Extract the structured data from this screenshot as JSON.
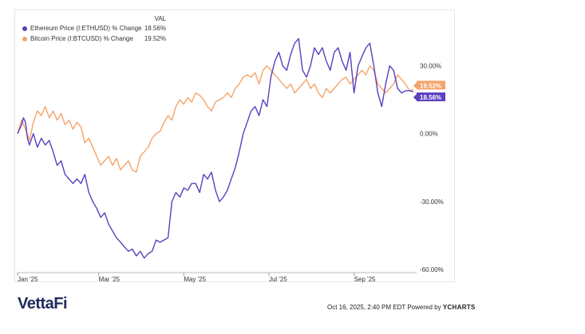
{
  "legend": {
    "header": "VAL",
    "items": [
      {
        "name": "Ethereum Price (I:ETHUSD) % Change",
        "value": "18.56%",
        "color": "#5b3fbf"
      },
      {
        "name": "Bitcoin Price (I:BTCUSD) % Change",
        "value": "19.52%",
        "color": "#f4a36a"
      }
    ]
  },
  "footer": {
    "logo": "VettaFi",
    "timestamp": "Oct 16, 2025, 2:40 PM EDT Powered by",
    "brand": "YCHARTS"
  },
  "chart_data": {
    "type": "line",
    "x_ticks": [
      "Jan '25",
      "Mar '25",
      "May '25",
      "Jul '25",
      "Sep '25"
    ],
    "y_ticks": [
      "30.00%",
      "0.00%",
      "-30.00%",
      "-60.00%"
    ],
    "ylim": [
      -60,
      45
    ],
    "end_labels": [
      "19.52%",
      "18.56%"
    ],
    "series": [
      {
        "name": "Ethereum Price (I:ETHUSD) % Change",
        "color": "#5b3fbf",
        "x": [
          0,
          0.01,
          0.015,
          0.02,
          0.025,
          0.03,
          0.04,
          0.05,
          0.06,
          0.07,
          0.08,
          0.09,
          0.1,
          0.11,
          0.12,
          0.13,
          0.14,
          0.15,
          0.16,
          0.17,
          0.18,
          0.19,
          0.2,
          0.21,
          0.22,
          0.23,
          0.24,
          0.25,
          0.26,
          0.27,
          0.28,
          0.29,
          0.3,
          0.31,
          0.32,
          0.33,
          0.34,
          0.35,
          0.36,
          0.37,
          0.38,
          0.39,
          0.4,
          0.41,
          0.42,
          0.43,
          0.44,
          0.45,
          0.46,
          0.47,
          0.48,
          0.49,
          0.5,
          0.51,
          0.52,
          0.53,
          0.54,
          0.55,
          0.56,
          0.57,
          0.58,
          0.59,
          0.6,
          0.61,
          0.62,
          0.63,
          0.64,
          0.65,
          0.66,
          0.67,
          0.68,
          0.69,
          0.7,
          0.71,
          0.72,
          0.73,
          0.74,
          0.75,
          0.76,
          0.77,
          0.78,
          0.79,
          0.8,
          0.81,
          0.82,
          0.83,
          0.84,
          0.85,
          0.86,
          0.87,
          0.88,
          0.89,
          0.9,
          0.91,
          0.92,
          0.93,
          0.94,
          0.95,
          0.96,
          0.97,
          0.98,
          0.99,
          1.0
        ],
        "values": [
          0,
          4,
          7,
          5,
          -2,
          -5,
          0,
          -6,
          -2,
          -5,
          -3,
          -8,
          -14,
          -12,
          -18,
          -20,
          -22,
          -20,
          -22,
          -18,
          -26,
          -30,
          -33,
          -37,
          -35,
          -40,
          -43,
          -46,
          -48,
          -50,
          -52,
          -51,
          -54,
          -52,
          -55,
          -53,
          -52,
          -47,
          -48,
          -47,
          -46,
          -30,
          -26,
          -28,
          -24,
          -25,
          -22,
          -22,
          -26,
          -18,
          -20,
          -17,
          -25,
          -30,
          -28,
          -25,
          -20,
          -15,
          -8,
          0,
          5,
          10,
          12,
          8,
          15,
          12,
          25,
          32,
          36,
          30,
          28,
          35,
          40,
          42,
          28,
          25,
          30,
          38,
          35,
          38,
          32,
          28,
          36,
          38,
          32,
          28,
          36,
          18,
          30,
          34,
          38,
          40,
          30,
          18,
          12,
          22,
          30,
          28,
          20,
          18,
          19,
          19,
          18.56
        ],
        "_note": "daily % change approximated"
      },
      {
        "name": "Bitcoin Price (I:BTCUSD) % Change",
        "color": "#f4a36a",
        "x": [
          0,
          0.01,
          0.02,
          0.03,
          0.04,
          0.05,
          0.06,
          0.07,
          0.08,
          0.09,
          0.1,
          0.11,
          0.12,
          0.13,
          0.14,
          0.15,
          0.16,
          0.17,
          0.18,
          0.19,
          0.2,
          0.21,
          0.22,
          0.23,
          0.24,
          0.25,
          0.26,
          0.27,
          0.28,
          0.29,
          0.3,
          0.31,
          0.32,
          0.33,
          0.34,
          0.35,
          0.36,
          0.37,
          0.38,
          0.39,
          0.4,
          0.41,
          0.42,
          0.43,
          0.44,
          0.45,
          0.46,
          0.47,
          0.48,
          0.49,
          0.5,
          0.51,
          0.52,
          0.53,
          0.54,
          0.55,
          0.56,
          0.57,
          0.58,
          0.59,
          0.6,
          0.61,
          0.62,
          0.63,
          0.64,
          0.65,
          0.66,
          0.67,
          0.68,
          0.69,
          0.7,
          0.71,
          0.72,
          0.73,
          0.74,
          0.75,
          0.76,
          0.77,
          0.78,
          0.79,
          0.8,
          0.81,
          0.82,
          0.83,
          0.84,
          0.85,
          0.86,
          0.87,
          0.88,
          0.89,
          0.9,
          0.91,
          0.92,
          0.93,
          0.94,
          0.95,
          0.96,
          0.97,
          0.98,
          0.99,
          1.0
        ],
        "values": [
          0,
          6,
          2,
          -3,
          5,
          10,
          8,
          12,
          7,
          10,
          6,
          9,
          4,
          6,
          2,
          5,
          3,
          -4,
          -2,
          -6,
          -10,
          -14,
          -12,
          -10,
          -14,
          -11,
          -16,
          -14,
          -12,
          -16,
          -17,
          -10,
          -8,
          -6,
          -2,
          0,
          1,
          5,
          8,
          6,
          12,
          15,
          13,
          16,
          14,
          18,
          17,
          15,
          12,
          10,
          14,
          15,
          16,
          18,
          16,
          20,
          22,
          25,
          26,
          25,
          27,
          22,
          28,
          30,
          28,
          26,
          24,
          22,
          20,
          22,
          18,
          20,
          22,
          24,
          20,
          22,
          18,
          16,
          20,
          18,
          20,
          22,
          24,
          25,
          22,
          24,
          26,
          28,
          26,
          30,
          28,
          22,
          20,
          18,
          20,
          22,
          26,
          24,
          22,
          19,
          19.52
        ],
        "_note": "daily % change approximated"
      }
    ]
  }
}
